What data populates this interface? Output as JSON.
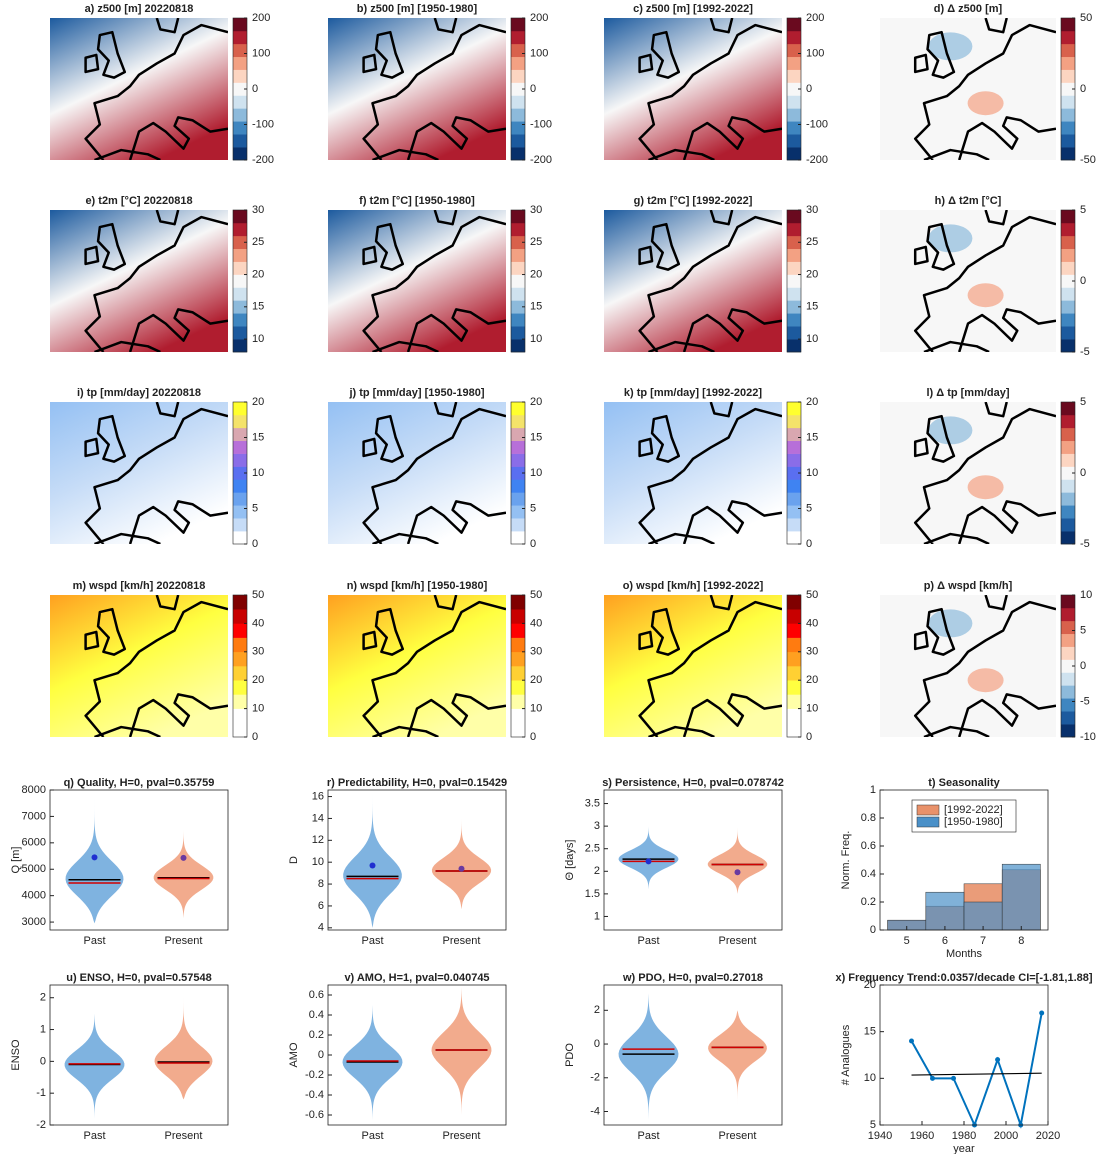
{
  "chart_data": [
    {
      "type": "map",
      "title": "a) z500 [m] 20220818",
      "clim": [
        -200,
        200
      ],
      "cticks": [
        -200,
        -100,
        0,
        100,
        200
      ],
      "colormap": [
        "#08306b",
        "#1c5a9e",
        "#3f86c0",
        "#8dbadb",
        "#cfe2ef",
        "#f7f7f7",
        "#fcd5c1",
        "#f3a183",
        "#d8614c",
        "#b01d2f",
        "#6a0a1f"
      ]
    },
    {
      "type": "map",
      "title": "b) z500 [m] [1950-1980]",
      "clim": [
        -200,
        200
      ],
      "cticks": [
        -200,
        -100,
        0,
        100,
        200
      ],
      "colormap": [
        "#08306b",
        "#1c5a9e",
        "#3f86c0",
        "#8dbadb",
        "#cfe2ef",
        "#f7f7f7",
        "#fcd5c1",
        "#f3a183",
        "#d8614c",
        "#b01d2f",
        "#6a0a1f"
      ]
    },
    {
      "type": "map",
      "title": "c) z500 [m] [1992-2022]",
      "clim": [
        -200,
        200
      ],
      "cticks": [
        -200,
        -100,
        0,
        100,
        200
      ],
      "colormap": [
        "#08306b",
        "#1c5a9e",
        "#3f86c0",
        "#8dbadb",
        "#cfe2ef",
        "#f7f7f7",
        "#fcd5c1",
        "#f3a183",
        "#d8614c",
        "#b01d2f",
        "#6a0a1f"
      ]
    },
    {
      "type": "map",
      "title": "d) Δ z500 [m]",
      "clim": [
        -50,
        50
      ],
      "cticks": [
        -50,
        0,
        50
      ],
      "colormap": [
        "#08306b",
        "#1c5a9e",
        "#3f86c0",
        "#8dbadb",
        "#cfe2ef",
        "#f7f7f7",
        "#fcd5c1",
        "#f3a183",
        "#d8614c",
        "#b01d2f",
        "#6a0a1f"
      ]
    },
    {
      "type": "map",
      "title": "e) t2m [°C] 20220818",
      "clim": [
        8,
        30
      ],
      "cticks": [
        10,
        15,
        20,
        25,
        30
      ],
      "colormap": [
        "#08306b",
        "#1c5a9e",
        "#3f86c0",
        "#8dbadb",
        "#cfe2ef",
        "#f7f7f7",
        "#fcd5c1",
        "#f3a183",
        "#d8614c",
        "#b01d2f",
        "#6a0a1f"
      ]
    },
    {
      "type": "map",
      "title": "f) t2m [°C] [1950-1980]",
      "clim": [
        8,
        30
      ],
      "cticks": [
        10,
        15,
        20,
        25,
        30
      ],
      "colormap": [
        "#08306b",
        "#1c5a9e",
        "#3f86c0",
        "#8dbadb",
        "#cfe2ef",
        "#f7f7f7",
        "#fcd5c1",
        "#f3a183",
        "#d8614c",
        "#b01d2f",
        "#6a0a1f"
      ]
    },
    {
      "type": "map",
      "title": "g) t2m [°C] [1992-2022]",
      "clim": [
        8,
        30
      ],
      "cticks": [
        10,
        15,
        20,
        25,
        30
      ],
      "colormap": [
        "#08306b",
        "#1c5a9e",
        "#3f86c0",
        "#8dbadb",
        "#cfe2ef",
        "#f7f7f7",
        "#fcd5c1",
        "#f3a183",
        "#d8614c",
        "#b01d2f",
        "#6a0a1f"
      ]
    },
    {
      "type": "map",
      "title": "h) Δ t2m [°C]",
      "clim": [
        -5,
        5
      ],
      "cticks": [
        -5,
        0,
        5
      ],
      "colormap": [
        "#08306b",
        "#1c5a9e",
        "#3f86c0",
        "#8dbadb",
        "#cfe2ef",
        "#f7f7f7",
        "#fcd5c1",
        "#f3a183",
        "#d8614c",
        "#b01d2f",
        "#6a0a1f"
      ]
    },
    {
      "type": "map",
      "title": "i) tp [mm/day] 20220818",
      "clim": [
        0,
        20
      ],
      "cticks": [
        0,
        5,
        10,
        15,
        20
      ],
      "colormap": [
        "#ffffff",
        "#c6dcf7",
        "#94c0f3",
        "#6aa2ee",
        "#3f83f2",
        "#5a6ff0",
        "#8a6de8",
        "#b76fd9",
        "#d9a7b0",
        "#f4e36a",
        "#ffff2e"
      ]
    },
    {
      "type": "map",
      "title": "j) tp [mm/day] [1950-1980]",
      "clim": [
        0,
        20
      ],
      "cticks": [
        0,
        5,
        10,
        15,
        20
      ],
      "colormap": [
        "#ffffff",
        "#c6dcf7",
        "#94c0f3",
        "#6aa2ee",
        "#3f83f2",
        "#5a6ff0",
        "#8a6de8",
        "#b76fd9",
        "#d9a7b0",
        "#f4e36a",
        "#ffff2e"
      ]
    },
    {
      "type": "map",
      "title": "k) tp [mm/day] [1992-2022]",
      "clim": [
        0,
        20
      ],
      "cticks": [
        0,
        5,
        10,
        15,
        20
      ],
      "colormap": [
        "#ffffff",
        "#c6dcf7",
        "#94c0f3",
        "#6aa2ee",
        "#3f83f2",
        "#5a6ff0",
        "#8a6de8",
        "#b76fd9",
        "#d9a7b0",
        "#f4e36a",
        "#ffff2e"
      ]
    },
    {
      "type": "map",
      "title": "l) Δ tp [mm/day]",
      "clim": [
        -5,
        5
      ],
      "cticks": [
        -5,
        0,
        5
      ],
      "colormap": [
        "#08306b",
        "#1c5a9e",
        "#3f86c0",
        "#8dbadb",
        "#cfe2ef",
        "#f7f7f7",
        "#fcd5c1",
        "#f3a183",
        "#d8614c",
        "#b01d2f",
        "#6a0a1f"
      ]
    },
    {
      "type": "map",
      "title": "m) wspd [km/h] 20220818",
      "clim": [
        0,
        50
      ],
      "cticks": [
        0,
        10,
        20,
        30,
        40,
        50
      ],
      "colormap": [
        "#ffffff",
        "#ffffff",
        "#ffffa8",
        "#ffff40",
        "#ffd033",
        "#ffa020",
        "#ff7b10",
        "#ff0000",
        "#c80000",
        "#800000"
      ]
    },
    {
      "type": "map",
      "title": "n) wspd [km/h] [1950-1980]",
      "clim": [
        0,
        50
      ],
      "cticks": [
        0,
        10,
        20,
        30,
        40,
        50
      ],
      "colormap": [
        "#ffffff",
        "#ffffff",
        "#ffffa8",
        "#ffff40",
        "#ffd033",
        "#ffa020",
        "#ff7b10",
        "#ff0000",
        "#c80000",
        "#800000"
      ]
    },
    {
      "type": "map",
      "title": "o) wspd [km/h] [1992-2022]",
      "clim": [
        0,
        50
      ],
      "cticks": [
        0,
        10,
        20,
        30,
        40,
        50
      ],
      "colormap": [
        "#ffffff",
        "#ffffff",
        "#ffffa8",
        "#ffff40",
        "#ffd033",
        "#ffa020",
        "#ff7b10",
        "#ff0000",
        "#c80000",
        "#800000"
      ]
    },
    {
      "type": "map",
      "title": "p) Δ wspd [km/h]",
      "clim": [
        -10,
        10
      ],
      "cticks": [
        -10,
        -5,
        0,
        5,
        10
      ],
      "colormap": [
        "#08306b",
        "#1c5a9e",
        "#3f86c0",
        "#8dbadb",
        "#cfe2ef",
        "#f7f7f7",
        "#fcd5c1",
        "#f3a183",
        "#d8614c",
        "#b01d2f",
        "#6a0a1f"
      ]
    },
    {
      "type": "violin",
      "title": "q)  Quality, H=0, pval=0.35759",
      "ylabel": "Q [m]",
      "categories": [
        "Past",
        "Present"
      ],
      "ylim": [
        2700,
        8000
      ],
      "yticks": [
        3000,
        4000,
        5000,
        6000,
        7000,
        8000
      ],
      "min": [
        2950,
        3150
      ],
      "max": [
        7700,
        6500
      ],
      "median": [
        4600,
        4680
      ],
      "mean": [
        4480,
        4650
      ],
      "event": [
        5450,
        5430
      ],
      "colors": [
        "#7fb3e0",
        "#f2ab8d"
      ],
      "event_colors": [
        "#1f2fd0",
        "#6a3aa0"
      ],
      "median_color": "#000000",
      "mean_color": "#d00000"
    },
    {
      "type": "violin",
      "title": "r)  Predictability, H=0, pval=0.15429",
      "ylabel": "D",
      "categories": [
        "Past",
        "Present"
      ],
      "ylim": [
        3.8,
        16.6
      ],
      "yticks": [
        4,
        6,
        8,
        10,
        12,
        14,
        16
      ],
      "min": [
        4,
        5.7
      ],
      "max": [
        16.3,
        14.2
      ],
      "median": [
        8.7,
        9.2
      ],
      "mean": [
        8.5,
        9.2
      ],
      "event": [
        9.7,
        9.4
      ],
      "colors": [
        "#7fb3e0",
        "#f2ab8d"
      ],
      "event_colors": [
        "#1f2fd0",
        "#6a3aa0"
      ],
      "median_color": "#000000",
      "mean_color": "#d00000"
    },
    {
      "type": "violin",
      "title": "s)  Persistence, H=0, pval=0.078742",
      "ylabel": "Θ [days]",
      "categories": [
        "Past",
        "Present"
      ],
      "ylim": [
        0.7,
        3.8
      ],
      "yticks": [
        1,
        1.5,
        2,
        2.5,
        3,
        3.5
      ],
      "min": [
        1.6,
        1.5
      ],
      "max": [
        3.0,
        3.0
      ],
      "median": [
        2.27,
        2.15
      ],
      "mean": [
        2.22,
        2.15
      ],
      "event": [
        2.22,
        1.98
      ],
      "colors": [
        "#7fb3e0",
        "#f2ab8d"
      ],
      "event_colors": [
        "#1f2fd0",
        "#6a3aa0"
      ],
      "median_color": "#000000",
      "mean_color": "#d00000"
    },
    {
      "type": "bar",
      "title": "t) Seasonality",
      "xlabel": "Months",
      "ylabel": "Norm. Freq.",
      "x": [
        5,
        6,
        7,
        8
      ],
      "xlim": [
        4.3,
        8.7
      ],
      "xticks": [
        5,
        6,
        7,
        8
      ],
      "ylim": [
        0,
        1
      ],
      "yticks": [
        0,
        0.2,
        0.4,
        0.6,
        0.8,
        1
      ],
      "legend": "upper center",
      "series": [
        {
          "name": "[1992-2022]",
          "color": "#e8916a",
          "values": [
            0.07,
            0.17,
            0.33,
            0.43
          ]
        },
        {
          "name": "[1950-1980]",
          "color": "#4a90c8",
          "values": [
            0.07,
            0.27,
            0.2,
            0.47
          ]
        }
      ]
    },
    {
      "type": "violin",
      "title": "u)  ENSO, H=0, pval=0.57548",
      "ylabel": "ENSO",
      "categories": [
        "Past",
        "Present"
      ],
      "ylim": [
        -2,
        2.4
      ],
      "yticks": [
        -2,
        -1,
        0,
        1,
        2
      ],
      "min": [
        -1.8,
        -1.2
      ],
      "max": [
        1.5,
        2.2
      ],
      "median": [
        -0.1,
        -0.02
      ],
      "mean": [
        -0.08,
        -0.05
      ],
      "colors": [
        "#7fb3e0",
        "#f2ab8d"
      ],
      "median_color": "#000000",
      "mean_color": "#d00000"
    },
    {
      "type": "violin",
      "title": "v)  AMO, H=1, pval=0.040745",
      "ylabel": "AMO",
      "categories": [
        "Past",
        "Present"
      ],
      "ylim": [
        -0.7,
        0.7
      ],
      "yticks": [
        -0.6,
        -0.4,
        -0.2,
        0,
        0.2,
        0.4,
        0.6
      ],
      "min": [
        -0.65,
        -0.6
      ],
      "max": [
        0.5,
        0.68
      ],
      "median": [
        -0.07,
        0.05
      ],
      "mean": [
        -0.06,
        0.05
      ],
      "colors": [
        "#7fb3e0",
        "#f2ab8d"
      ],
      "median_color": "#000000",
      "mean_color": "#d00000"
    },
    {
      "type": "violin",
      "title": "w)  PDO, H=0, pval=0.27018",
      "ylabel": "PDO",
      "categories": [
        "Past",
        "Present"
      ],
      "ylim": [
        -4.8,
        3.5
      ],
      "yticks": [
        -4,
        -2,
        0,
        2
      ],
      "min": [
        -4.5,
        -3.7
      ],
      "max": [
        3.0,
        2.0
      ],
      "median": [
        -0.6,
        -0.2
      ],
      "mean": [
        -0.3,
        -0.2
      ],
      "colors": [
        "#7fb3e0",
        "#f2ab8d"
      ],
      "median_color": "#000000",
      "mean_color": "#d00000"
    },
    {
      "type": "line",
      "title": "x) Frequency Trend:0.0357/decade CI=[-1.81,1.88]",
      "xlabel": "year",
      "ylabel": "# Analogues",
      "xlim": [
        1940,
        2020
      ],
      "xticks": [
        1940,
        1960,
        1980,
        2000,
        2020
      ],
      "ylim": [
        5,
        20
      ],
      "yticks": [
        5,
        10,
        15,
        20
      ],
      "x": [
        1955,
        1965,
        1975,
        1985,
        1996,
        2007,
        2017
      ],
      "values": [
        14,
        10,
        10,
        5,
        12,
        5,
        17
      ],
      "color": "#0072bd",
      "trend": {
        "x": [
          1955,
          2017
        ],
        "values": [
          10.35,
          10.55
        ],
        "color": "#000000"
      }
    }
  ]
}
